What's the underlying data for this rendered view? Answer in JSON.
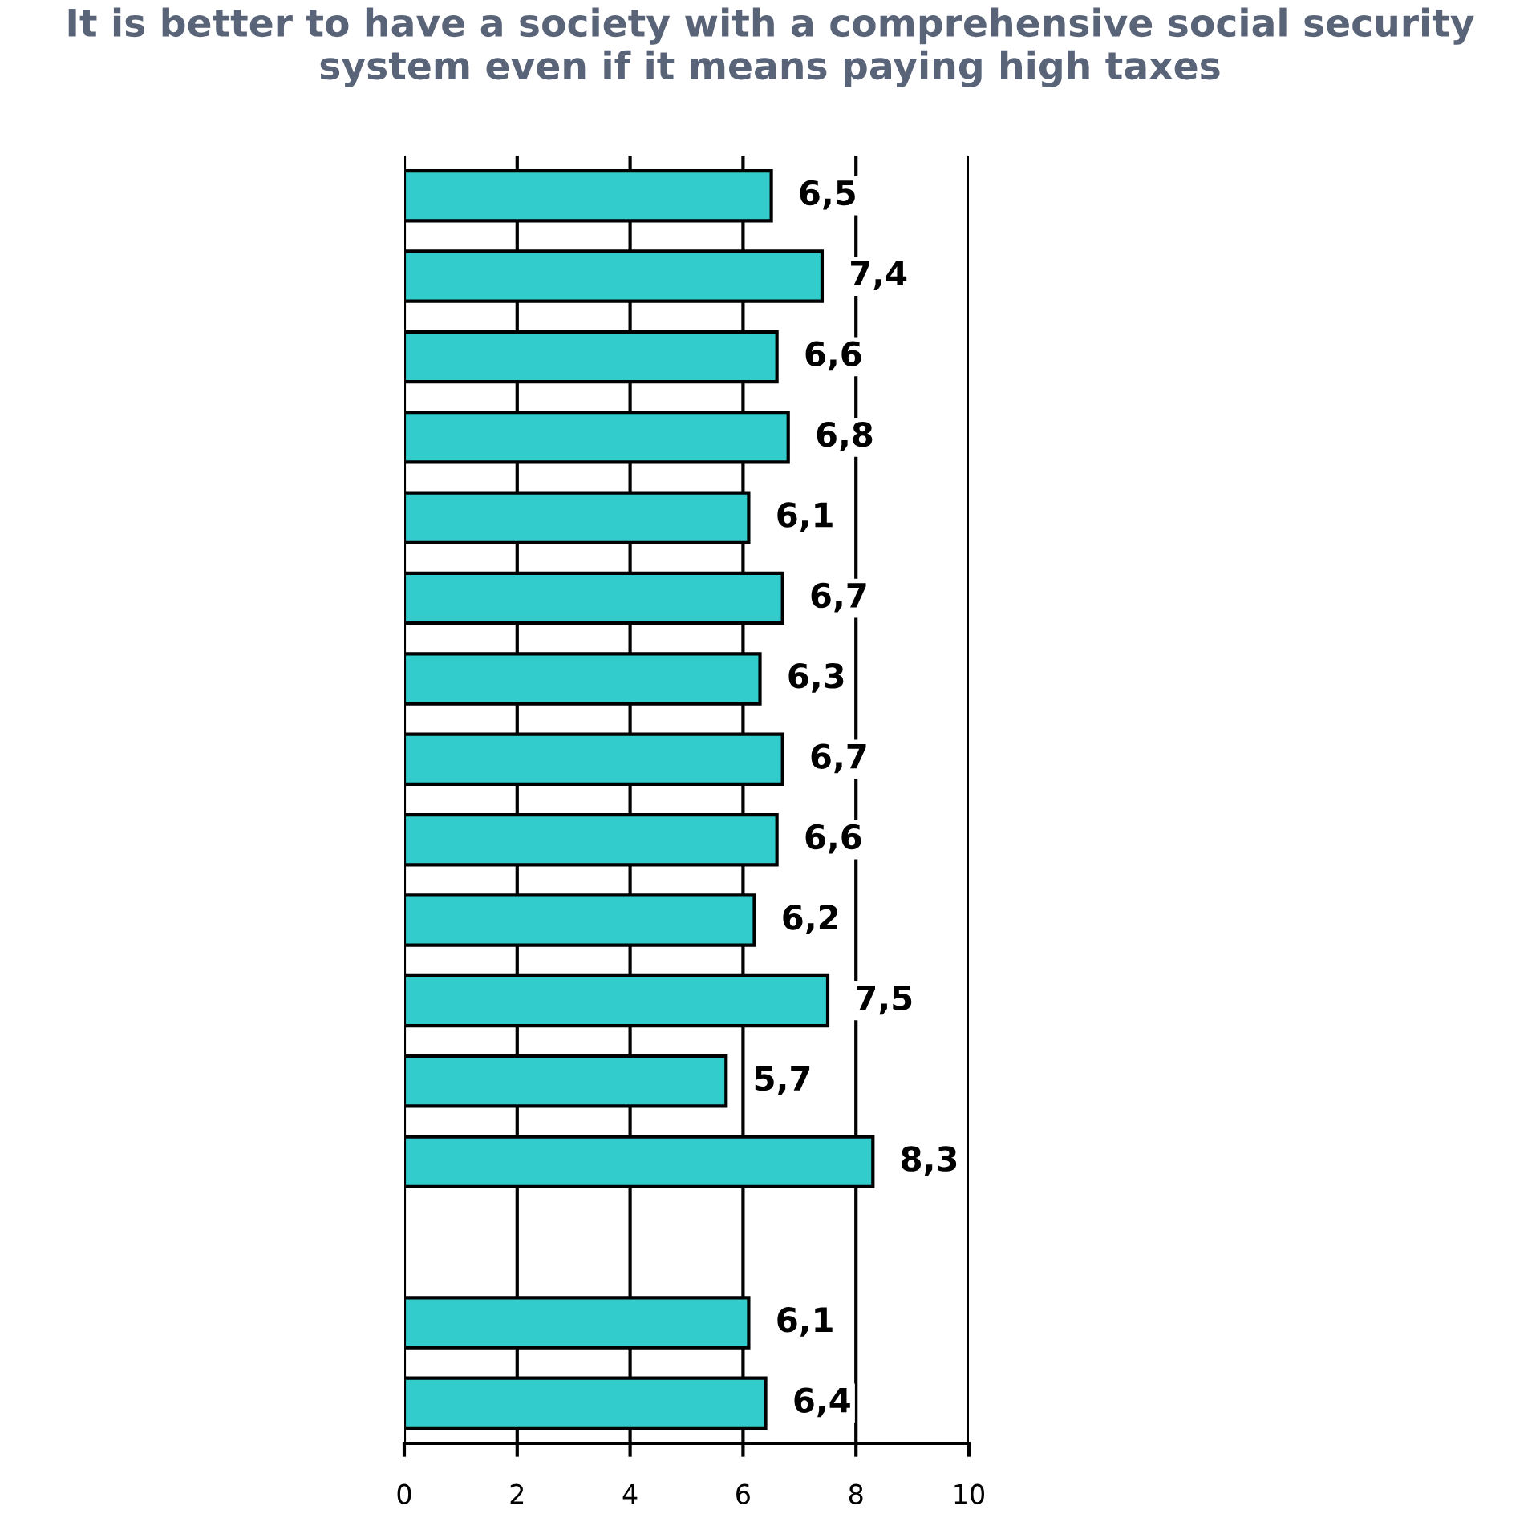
{
  "chart_data": {
    "type": "bar",
    "orientation": "horizontal",
    "title": "It is better to have a society with a comprehensive social security\nsystem even if it means paying high taxes",
    "categories": [
      null,
      null,
      null,
      null,
      null,
      null,
      null,
      null,
      null,
      null,
      null,
      null,
      null,
      null,
      null,
      null
    ],
    "values": [
      6.5,
      7.4,
      6.6,
      6.8,
      6.1,
      6.7,
      6.3,
      6.7,
      6.6,
      6.2,
      7.5,
      5.7,
      8.3,
      null,
      6.1,
      6.4
    ],
    "value_labels": [
      "6,5",
      "7,4",
      "6,6",
      "6,8",
      "6,1",
      "6,7",
      "6,3",
      "6,7",
      "6,6",
      "6,2",
      "7,5",
      "5,7",
      "8,3",
      null,
      "6,1",
      "6,4"
    ],
    "color": "#33cccc",
    "xlim": [
      0,
      10
    ],
    "xticks": [
      0,
      2,
      4,
      6,
      8,
      10
    ],
    "grid": "x",
    "legend": false
  }
}
